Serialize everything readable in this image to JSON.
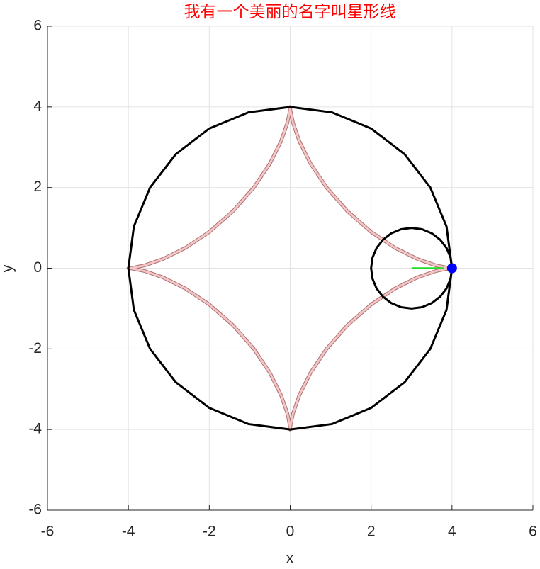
{
  "chart_data": {
    "type": "line",
    "title": "我有一个美丽的名字叫星形线",
    "xlabel": "x",
    "ylabel": "y",
    "xlim": [
      -6,
      6
    ],
    "ylim": [
      -6,
      6
    ],
    "xticks": [
      -6,
      -4,
      -2,
      0,
      2,
      4,
      6
    ],
    "yticks": [
      -6,
      -4,
      -2,
      0,
      2,
      4,
      6
    ],
    "grid": true,
    "series": [
      {
        "color": "#f2c6c6",
        "width": 3,
        "x": [
          4,
          3.898,
          3.605,
          3.154,
          2.598,
          1.997,
          1.414,
          0.902,
          0.5,
          0.224,
          0.069,
          0.009,
          0,
          -0.009,
          -0.069,
          -0.224,
          -0.5,
          -0.902,
          -1.414,
          -1.997,
          -2.598,
          -3.154,
          -3.605,
          -3.898,
          -4,
          -3.898,
          -3.605,
          -3.154,
          -2.598,
          -1.997,
          -1.414,
          -0.902,
          -0.5,
          -0.224,
          -0.069,
          -0.009,
          0,
          0.009,
          0.069,
          0.224,
          0.5,
          0.902,
          1.414,
          1.997,
          2.598,
          3.154,
          3.605,
          3.898,
          4
        ],
        "y": [
          0,
          0.009,
          0.069,
          0.224,
          0.5,
          0.902,
          1.414,
          1.997,
          2.598,
          3.154,
          3.605,
          3.898,
          4,
          3.898,
          3.605,
          3.154,
          2.598,
          1.997,
          1.414,
          0.902,
          0.5,
          0.224,
          0.069,
          0.009,
          0,
          -0.009,
          -0.069,
          -0.224,
          -0.5,
          -0.902,
          -1.414,
          -1.997,
          -2.598,
          -3.154,
          -3.605,
          -3.898,
          -4,
          -3.898,
          -3.605,
          -3.154,
          -2.598,
          -1.997,
          -1.414,
          -0.902,
          -0.5,
          -0.224,
          -0.069,
          -0.009,
          0
        ]
      },
      {
        "color": "#000000",
        "width": 3,
        "x": [
          4,
          3.864,
          3.464,
          2.828,
          2,
          1.035,
          0,
          -1.035,
          -2,
          -2.828,
          -3.464,
          -3.864,
          -4,
          -3.864,
          -3.464,
          -2.828,
          -2,
          -1.035,
          0,
          1.035,
          2,
          2.828,
          3.464,
          3.864,
          4
        ],
        "y": [
          0,
          1.035,
          2,
          2.828,
          3.464,
          3.864,
          4,
          3.864,
          3.464,
          2.828,
          2,
          1.035,
          0,
          -1.035,
          -2,
          -2.828,
          -3.464,
          -3.864,
          -4,
          -3.864,
          -3.464,
          -2.828,
          -2,
          -1.035,
          0
        ]
      },
      {
        "color": "#000000",
        "width": 3,
        "x": [
          4,
          3.966,
          3.866,
          3.707,
          3.5,
          3.259,
          3,
          2.741,
          2.5,
          2.293,
          2.134,
          2.034,
          2,
          2.034,
          2.134,
          2.293,
          2.5,
          2.741,
          3,
          3.259,
          3.5,
          3.707,
          3.866,
          3.966,
          4
        ],
        "y": [
          0,
          0.259,
          0.5,
          0.707,
          0.866,
          0.966,
          1,
          0.966,
          0.866,
          0.707,
          0.5,
          0.259,
          0,
          -0.259,
          -0.5,
          -0.707,
          -0.866,
          -0.966,
          -1,
          -0.966,
          -0.866,
          -0.707,
          -0.5,
          -0.259,
          0
        ]
      },
      {
        "color": "#22dd22",
        "width": 2.5,
        "x": [
          3,
          3.8
        ],
        "y": [
          0,
          0
        ]
      },
      {
        "color": "#0000ff",
        "marker": true,
        "x": [
          4
        ],
        "y": [
          0
        ]
      }
    ]
  }
}
